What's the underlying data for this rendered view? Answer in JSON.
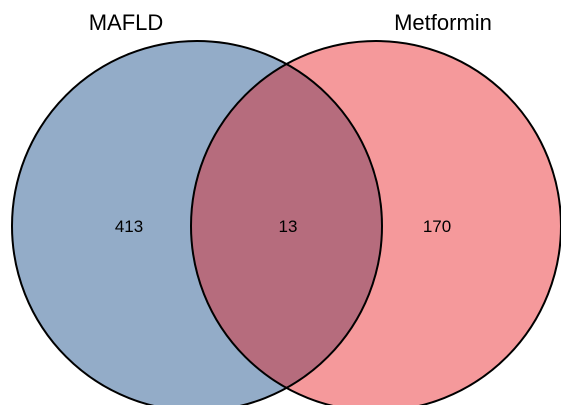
{
  "sets": [
    {
      "label": "MAFLD",
      "color": "#93acc8"
    },
    {
      "label": "Metformin",
      "color": "#f5999b"
    }
  ],
  "regions": {
    "left_only": "413",
    "intersection": "13",
    "right_only": "170"
  },
  "intersection_color": "#b66c7d"
}
